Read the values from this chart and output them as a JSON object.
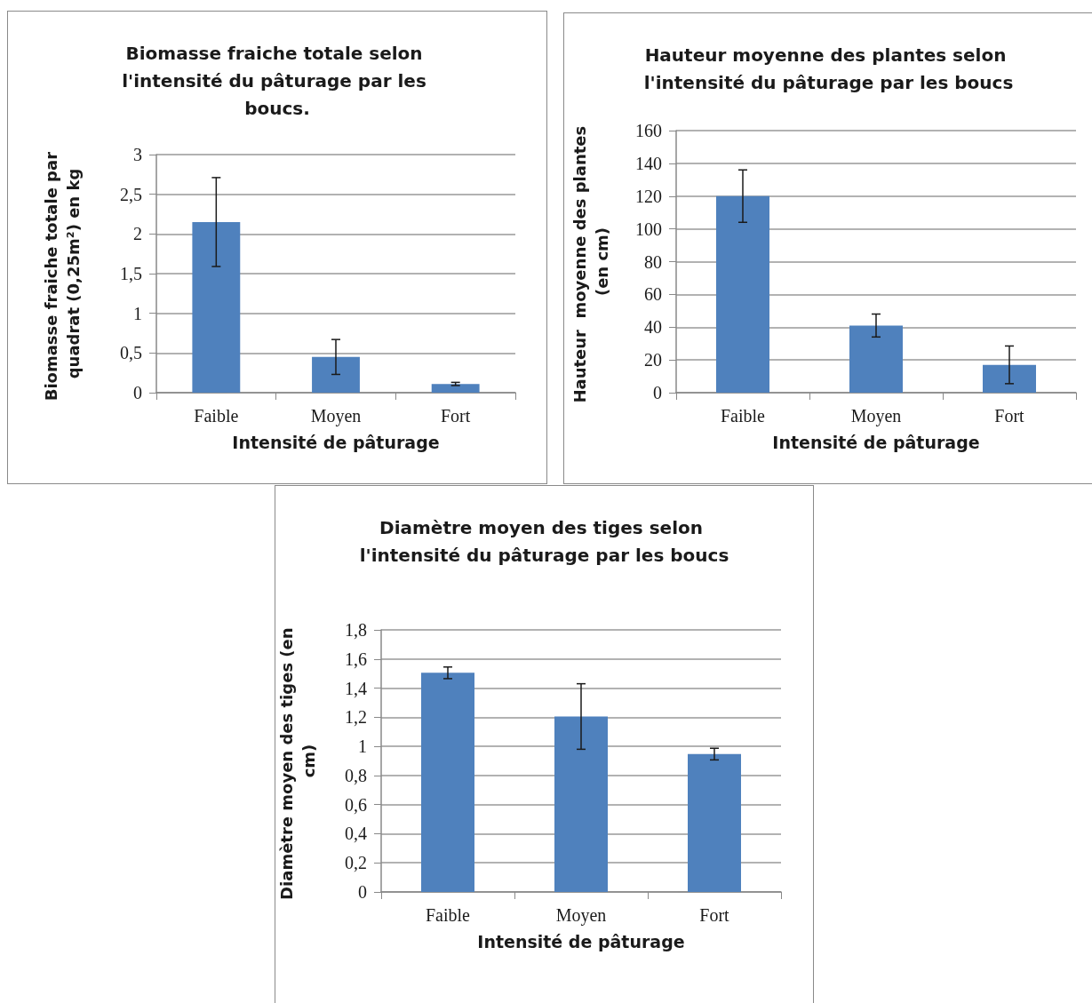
{
  "chart_data": [
    {
      "type": "bar",
      "title": "Biomasse fraiche totale selon l'intensité du pâturage par les boucs.",
      "xlabel": "Intensité de pâturage",
      "ylabel": "Biomasse fraiche totale par quadrat (0,25m²) en kg",
      "categories": [
        "Faible",
        "Moyen",
        "Fort"
      ],
      "color": "#4f81bd",
      "values": [
        2.15,
        0.45,
        0.11
      ],
      "errors": [
        0.56,
        0.22,
        0.02
      ],
      "ylim": [
        0,
        3
      ],
      "yticks": [
        0,
        {
          "value": 0.5,
          "label": "0,5"
        },
        1,
        {
          "value": 1.5,
          "label": "1,5"
        },
        2,
        {
          "value": 2.5,
          "label": "2,5"
        },
        3
      ],
      "grid": "y"
    },
    {
      "type": "bar",
      "title": "Hauteur moyenne des plantes selon l'intensité du pâturage par les boucs",
      "xlabel": "Intensité de pâturage",
      "ylabel": "Hauteur  moyenne des plantes (en cm)",
      "categories": [
        "Faible",
        "Moyen",
        "Fort"
      ],
      "color": "#4f81bd",
      "values": [
        120,
        41,
        17
      ],
      "errors": [
        16,
        7,
        11.5
      ],
      "ylim": [
        0,
        160
      ],
      "yticks": [
        0,
        20,
        40,
        60,
        80,
        100,
        120,
        140,
        160
      ],
      "grid": "y"
    },
    {
      "type": "bar",
      "title": "Diamètre moyen des tiges selon l'intensité du pâturage par les boucs",
      "xlabel": "Intensité de pâturage",
      "ylabel": "Diamètre moyen des tiges (en cm)",
      "categories": [
        "Faible",
        "Moyen",
        "Fort"
      ],
      "color": "#4f81bd",
      "values": [
        1.505,
        1.205,
        0.947
      ],
      "errors": [
        0.04,
        0.225,
        0.04
      ],
      "ylim": [
        0,
        1.8
      ],
      "yticks": [
        0,
        {
          "value": 0.2,
          "label": "0,2"
        },
        {
          "value": 0.4,
          "label": "0,4"
        },
        {
          "value": 0.6,
          "label": "0,6"
        },
        {
          "value": 0.8,
          "label": "0,8"
        },
        1,
        {
          "value": 1.2,
          "label": "1,2"
        },
        {
          "value": 1.4,
          "label": "1,4"
        },
        {
          "value": 1.6,
          "label": "1,6"
        },
        {
          "value": 1.8,
          "label": "1,8"
        }
      ],
      "grid": "y"
    }
  ]
}
